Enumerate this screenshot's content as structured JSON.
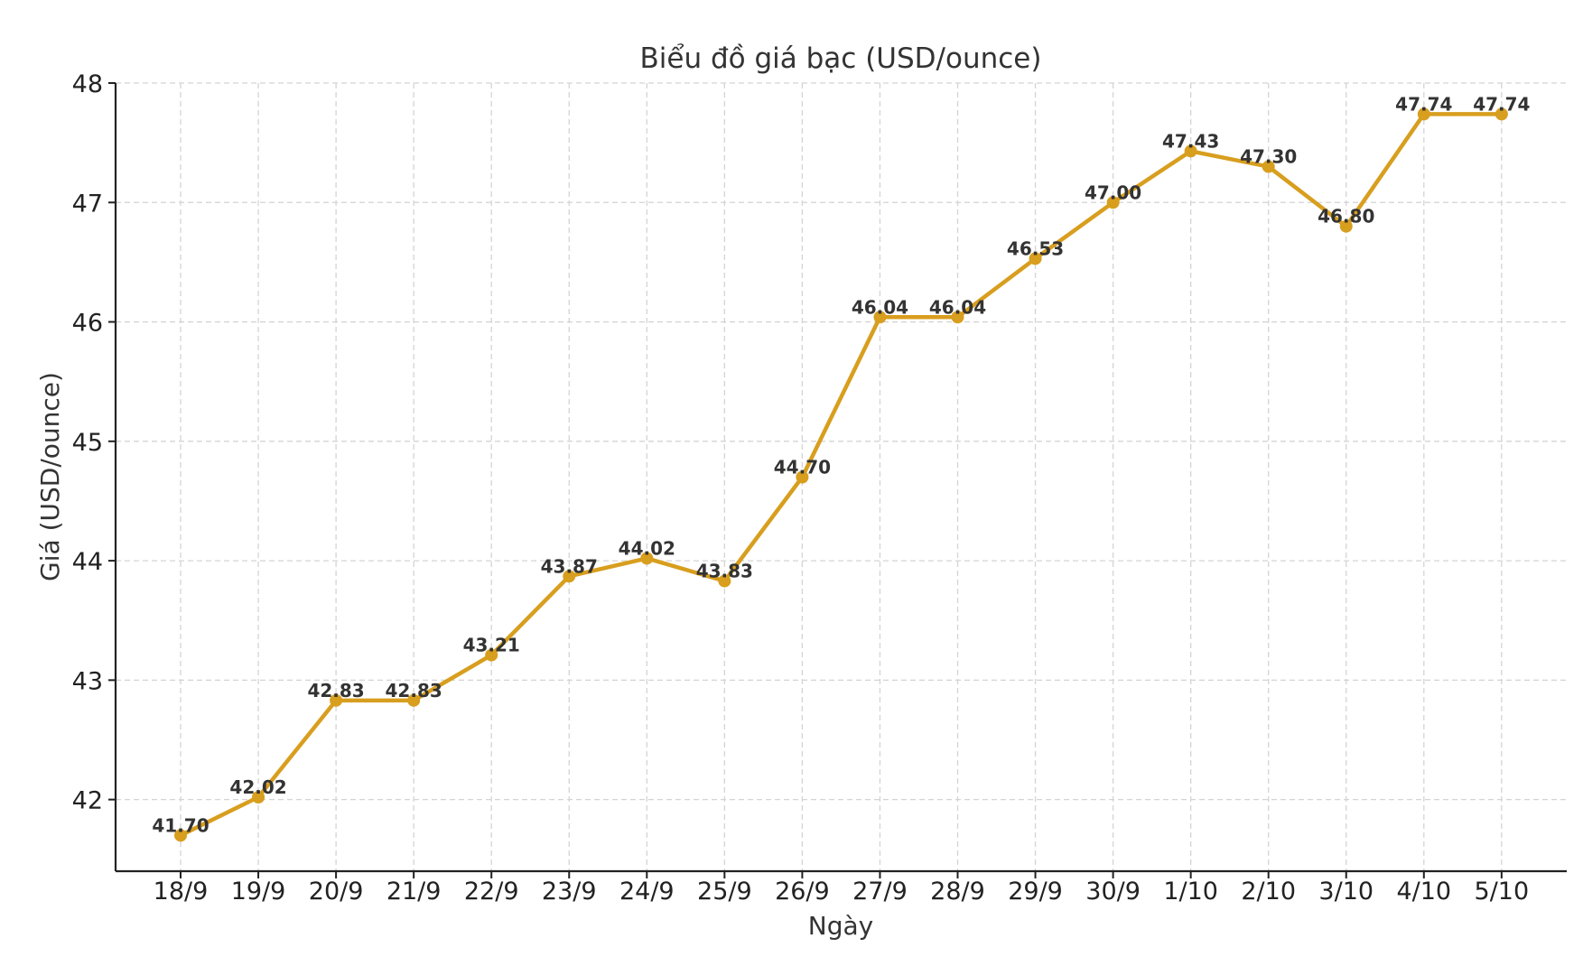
{
  "chart_data": {
    "type": "line",
    "title": "Biểu đồ giá bạc (USD/ounce)",
    "xlabel": "Ngày",
    "ylabel": "Giá (USD/ounce)",
    "categories": [
      "18/9",
      "19/9",
      "20/9",
      "21/9",
      "22/9",
      "23/9",
      "24/9",
      "25/9",
      "26/9",
      "27/9",
      "28/9",
      "29/9",
      "30/9",
      "1/10",
      "2/10",
      "3/10",
      "4/10",
      "5/10"
    ],
    "values": [
      41.7,
      42.02,
      42.83,
      42.83,
      43.21,
      43.87,
      44.02,
      43.83,
      44.7,
      46.04,
      46.04,
      46.53,
      47.0,
      47.43,
      47.3,
      46.8,
      47.74,
      47.74
    ],
    "data_labels": [
      "41.70",
      "42.02",
      "42.83",
      "42.83",
      "43.21",
      "43.87",
      "44.02",
      "43.83",
      "44.70",
      "46.04",
      "46.04",
      "46.53",
      "47.00",
      "47.43",
      "47.30",
      "46.80",
      "47.74",
      "47.74"
    ],
    "y_ticks": [
      "42",
      "43",
      "44",
      "45",
      "46",
      "47",
      "48"
    ],
    "ylim": [
      41.4,
      48.0
    ],
    "grid": true,
    "line_color": "#d89e1e",
    "marker_color": "#d89e1e"
  }
}
